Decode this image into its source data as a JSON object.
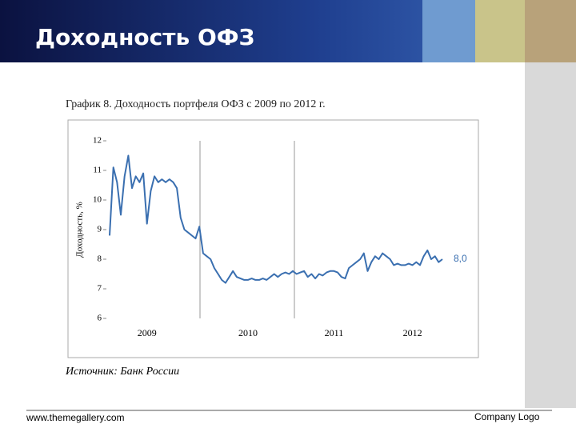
{
  "slide": {
    "title": "Доходность ОФЗ",
    "footer_left": "www.themegallery.com",
    "footer_right": "Company Logo"
  },
  "chart_data": {
    "type": "line",
    "title": "График 8. Доходность портфеля ОФЗ с 2009 по 2012 г.",
    "ylabel": "Доходность, %",
    "source": "Источник: Банк России",
    "annotation": "8,0",
    "color": "#3a6fb0",
    "categories": [
      null,
      null,
      null,
      null,
      null,
      null,
      null,
      null,
      null,
      null,
      "2009",
      null,
      null,
      null,
      null,
      null,
      null,
      null,
      null,
      null,
      null,
      null,
      null,
      null,
      null,
      null,
      null,
      null,
      null,
      null,
      null,
      null,
      null,
      null,
      null,
      null,
      null,
      "2010",
      null,
      null,
      null,
      null,
      null,
      null,
      null,
      null,
      null,
      null,
      null,
      null,
      null,
      null,
      null,
      null,
      null,
      null,
      null,
      null,
      null,
      null,
      "2011",
      null,
      null,
      null,
      null,
      null,
      null,
      null,
      null,
      null,
      null,
      null,
      null,
      null,
      null,
      null,
      null,
      null,
      null,
      null,
      null,
      "2012",
      null,
      null,
      null,
      null,
      null,
      null,
      null,
      null
    ],
    "values": [
      8.8,
      11.1,
      10.6,
      9.5,
      10.8,
      11.5,
      10.4,
      10.8,
      10.6,
      10.9,
      9.2,
      10.3,
      10.8,
      10.6,
      10.7,
      10.6,
      10.7,
      10.6,
      10.4,
      9.4,
      9.0,
      8.9,
      8.8,
      8.7,
      9.1,
      8.2,
      8.1,
      8.0,
      7.7,
      7.5,
      7.3,
      7.2,
      7.4,
      7.6,
      7.4,
      7.35,
      7.3,
      7.3,
      7.35,
      7.3,
      7.3,
      7.35,
      7.3,
      7.4,
      7.5,
      7.4,
      7.5,
      7.55,
      7.5,
      7.6,
      7.5,
      7.55,
      7.6,
      7.4,
      7.5,
      7.35,
      7.5,
      7.45,
      7.55,
      7.6,
      7.6,
      7.55,
      7.4,
      7.35,
      7.7,
      7.8,
      7.9,
      8.0,
      8.2,
      7.6,
      7.9,
      8.1,
      8.0,
      8.2,
      8.1,
      8.0,
      7.8,
      7.85,
      7.8,
      7.8,
      7.85,
      7.8,
      7.9,
      7.8,
      8.1,
      8.3,
      8.0,
      8.1,
      7.9,
      8.0
    ],
    "ylim": [
      6,
      12
    ],
    "yticks": [
      6,
      7,
      8,
      9,
      10,
      11,
      12
    ]
  }
}
